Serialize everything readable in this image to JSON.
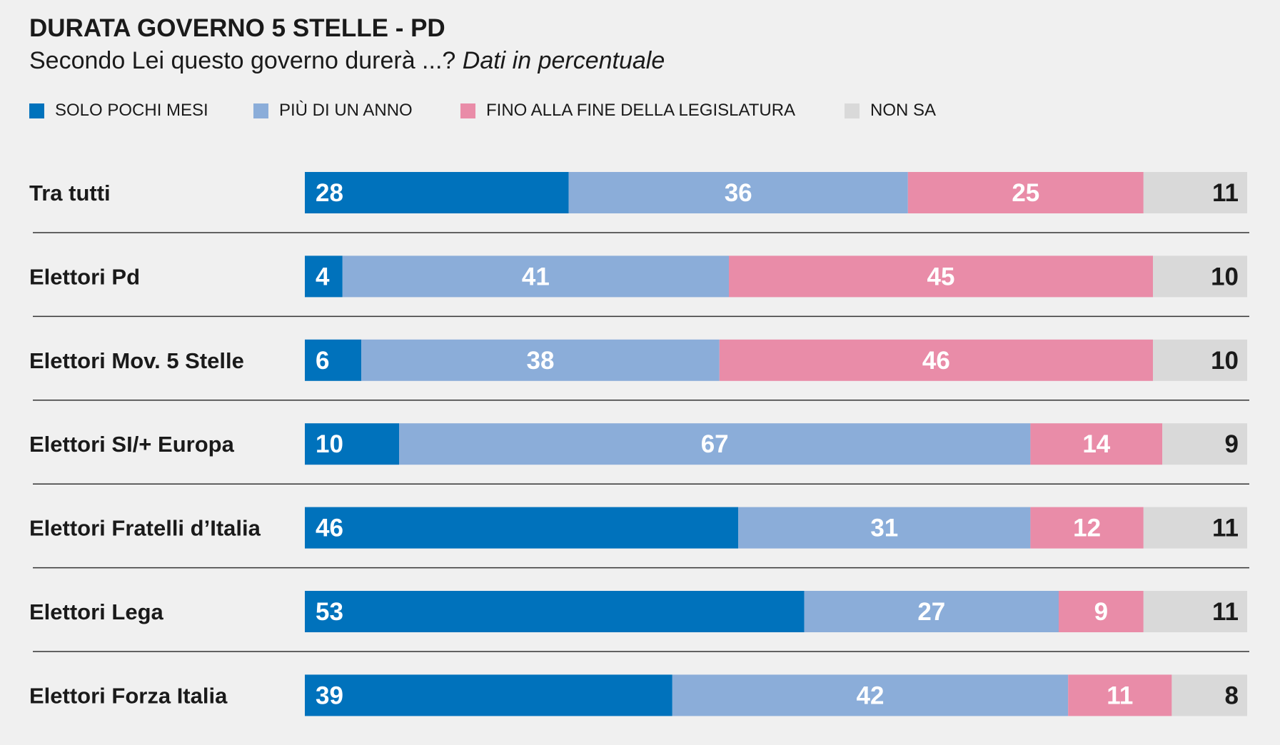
{
  "title": "DURATA GOVERNO 5 STELLE - PD",
  "subtitle": "Secondo Lei questo governo durerà ...?",
  "subtitle_note": "Dati in percentuale",
  "colors": {
    "solo_pochi_mesi": "#0072bc",
    "piu_di_un_anno": "#8badd9",
    "fine_legislatura": "#e98ca8",
    "non_sa": "#d9d9d9",
    "label_light": "#ffffff",
    "label_dark": "#1a1a1a",
    "background": "#f0f0f0",
    "separator": "#333333"
  },
  "chart_data": {
    "type": "bar",
    "orientation": "horizontal",
    "stacked": true,
    "title": "DURATA GOVERNO 5 STELLE - PD",
    "subtitle": "Secondo Lei questo governo durerà ...? Dati in percentuale",
    "xlim": [
      0,
      100
    ],
    "legend_position": "top-left",
    "grid": false,
    "categories": [
      "Tra tutti",
      "Elettori Pd",
      "Elettori Mov. 5 Stelle",
      "Elettori SI/+ Europa",
      "Elettori Fratelli d’Italia",
      "Elettori Lega",
      "Elettori Forza Italia"
    ],
    "series": [
      {
        "name": "SOLO POCHI MESI",
        "values": [
          28,
          4,
          6,
          10,
          46,
          53,
          39
        ]
      },
      {
        "name": "PIÙ DI UN ANNO",
        "values": [
          36,
          41,
          38,
          67,
          31,
          27,
          42
        ]
      },
      {
        "name": "FINO ALLA FINE DELLA LEGISLATURA",
        "values": [
          25,
          45,
          46,
          14,
          12,
          9,
          11
        ]
      },
      {
        "name": "NON SA",
        "values": [
          11,
          10,
          10,
          9,
          11,
          11,
          8
        ]
      }
    ]
  }
}
